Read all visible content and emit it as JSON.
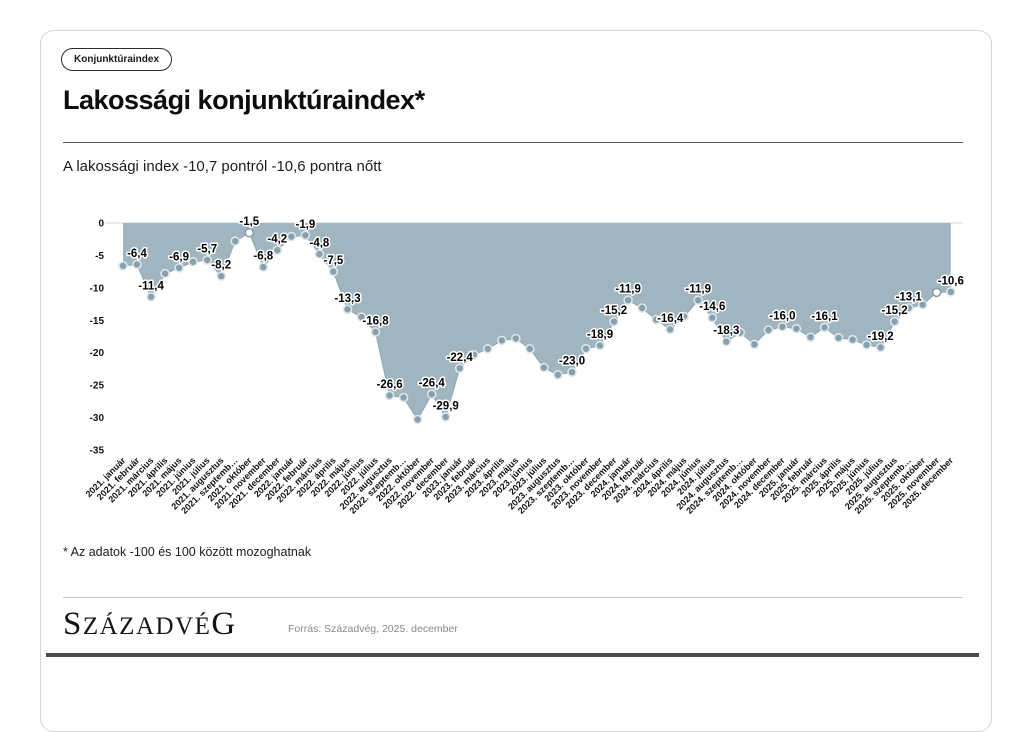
{
  "page": {
    "badge": "Konjunktúraindex",
    "title": "Lakossági konjunktúraindex*",
    "subtitle": "A lakossági index -10,7 pontról -10,6 pontra nőtt",
    "footnote": "* Az adatok -100 és 100 között mozoghatnak",
    "logo": {
      "first": "S",
      "middle": "ZÁZADVÉ",
      "last": "G"
    },
    "source": "Forrás: Századvég, 2025. december"
  },
  "chart_data": {
    "type": "area",
    "title": "Lakossági konjunktúraindex",
    "x": [
      "2021. január",
      "2021. február",
      "2021. március",
      "2021. április",
      "2021. május",
      "2021. június",
      "2021. július",
      "2021. augusztus",
      "2021. szeptemb…",
      "2021. október",
      "2021. november",
      "2021. december",
      "2022. január",
      "2022. február",
      "2022. március",
      "2022. április",
      "2022. május",
      "2022. június",
      "2022. július",
      "2022. augusztus",
      "2022. szeptemb…",
      "2022. október",
      "2022. november",
      "2022. december",
      "2023. január",
      "2023. február",
      "2023. március",
      "2023. április",
      "2023. május",
      "2023. június",
      "2023. július",
      "2023. augusztus",
      "2023. szeptemb…",
      "2023. október",
      "2023. november",
      "2023. december",
      "2024. január",
      "2024. február",
      "2024. március",
      "2024. április",
      "2024. május",
      "2024. június",
      "2024. július",
      "2024. augusztus",
      "2024. szeptemb…",
      "2024. október",
      "2024. november",
      "2024. december",
      "2025. január",
      "2025. február",
      "2025. március",
      "2025. április",
      "2025. május",
      "2025. június",
      "2025. július",
      "2025. augusztus",
      "2025. szeptemb…",
      "2025. október",
      "2025. november",
      "2025. december"
    ],
    "values": [
      -6.6,
      -6.4,
      -11.4,
      -7.8,
      -6.9,
      -6.0,
      -5.7,
      -8.2,
      -2.8,
      -1.5,
      -6.8,
      -4.2,
      -2.1,
      -1.9,
      -4.8,
      -7.5,
      -13.3,
      -14.5,
      -16.8,
      -26.6,
      -26.9,
      -30.3,
      -26.4,
      -29.9,
      -22.4,
      -20.3,
      -19.4,
      -18.1,
      -17.8,
      -19.4,
      -22.3,
      -23.4,
      -23.0,
      -19.4,
      -18.9,
      -15.2,
      -11.9,
      -13.1,
      -14.9,
      -16.4,
      -14.4,
      -11.9,
      -14.6,
      -18.3,
      -16.9,
      -18.7,
      -16.5,
      -16.0,
      -16.3,
      -17.6,
      -16.1,
      -17.7,
      -18.0,
      -18.8,
      -19.2,
      -15.2,
      -13.1,
      -12.6,
      -10.7,
      -10.6
    ],
    "point_labels": [
      "",
      "-6,4",
      "-11,4",
      "",
      "-6,9",
      "",
      "-5,7",
      "-8,2",
      "",
      "-1,5",
      "-6,8",
      "-4,2",
      "",
      "-1,9",
      "-4,8",
      "-7,5",
      "-13,3",
      "",
      "-16,8",
      "-26,6",
      "",
      "",
      "-26,4",
      "-29,9",
      "-22,4",
      "",
      "",
      "",
      "",
      "",
      "",
      "",
      "-23,0",
      "",
      "-18,9",
      "-15,2",
      "-11,9",
      "",
      "",
      "-16,4",
      "",
      "-11,9",
      "-14,6",
      "-18,3",
      "",
      "",
      "",
      "-16,0",
      "",
      "",
      "-16,1",
      "",
      "",
      "",
      "-19,2",
      "-15,2",
      "-13,1",
      "",
      "",
      "-10,6"
    ],
    "open_marker_indices": [
      9,
      58
    ],
    "ylim": [
      -35,
      0
    ],
    "yticks": [
      0,
      -5,
      -10,
      -15,
      -20,
      -25,
      -30,
      -35
    ],
    "grid": "zero-line-only",
    "legend": "none",
    "colors": {
      "area": "#a0b5c0",
      "line": "#93aab7",
      "marker": "#87a0ad",
      "marker_ring": "#dde6ea",
      "zero_line": "#d4d4d4",
      "label": "#000000",
      "axis_text": "#111111"
    }
  }
}
